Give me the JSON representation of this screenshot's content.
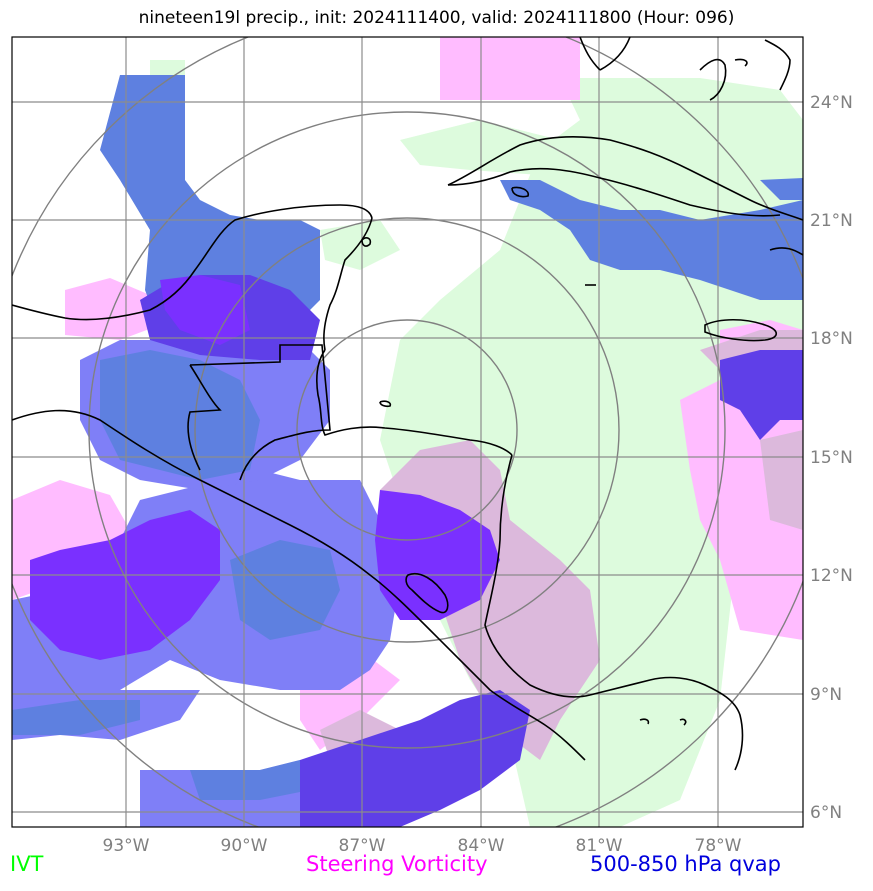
{
  "title": "nineteen19l precip., init: 2024111400, valid: 2024111800 (Hour: 096)",
  "legend": {
    "ivt": "IVT",
    "vorticity": "Steering Vorticity",
    "qvap": "500-850 hPa qvap"
  },
  "axes": {
    "lon_ticks": [
      "93°W",
      "90°W",
      "87°W",
      "84°W",
      "81°W",
      "78°W"
    ],
    "lat_ticks": [
      "24°N",
      "21°N",
      "18°N",
      "15°N",
      "12°N",
      "9°N",
      "6°N"
    ]
  },
  "colors": {
    "ivt": "#ddfbdd",
    "vorticity": "#ffbcff",
    "vort_overlap": "#dcb9dc",
    "qvap_light": "#7f7ff7",
    "qvap_mid": "#5e80e0",
    "qvap_dark": "#5f3fe8",
    "qvap_violet": "#7a30ff"
  }
}
